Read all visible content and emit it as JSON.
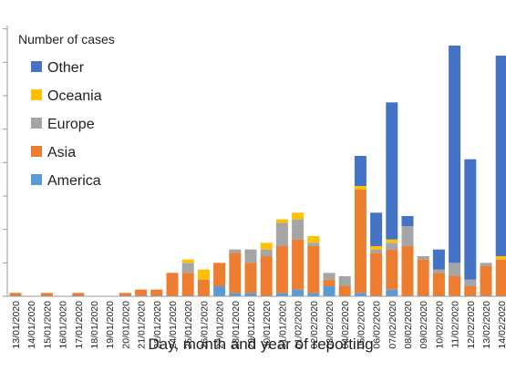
{
  "chart_data": {
    "type": "bar",
    "stacked": true,
    "ylabel": "Number of cases",
    "xlabel": "Day, month and year of reporting",
    "ylim": [
      0,
      81
    ],
    "y_tick_step": 10,
    "y_tick_labels_visible": false,
    "grid": false,
    "legend_position": "top-left",
    "legend_order": [
      "Other",
      "Oceania",
      "Europe",
      "Asia",
      "America"
    ],
    "categories": [
      "13/01/2020",
      "14/01/2020",
      "15/01/2020",
      "16/01/2020",
      "17/01/2020",
      "18/01/2020",
      "19/01/2020",
      "20/01/2020",
      "21/01/2020",
      "22/01/2020",
      "24/01/2020",
      "25/01/2020",
      "26/01/2020",
      "27/01/2020",
      "28/01/2020",
      "29/01/2020",
      "30/01/2020",
      "31/01/2020",
      "01/02/2020",
      "02/02/2020",
      "03/02/2020",
      "04/02/2020",
      "05/02/2020",
      "06/02/2020",
      "07/02/2020",
      "08/02/2020",
      "09/02/2020",
      "10/02/2020",
      "11/02/2020",
      "12/02/2020",
      "13/02/2020",
      "14/02/2020"
    ],
    "series": [
      {
        "name": "America",
        "color": "#5b9bd5",
        "values": [
          0,
          0,
          0,
          0,
          0,
          0,
          0,
          0,
          0,
          0,
          0,
          0,
          0,
          3,
          1,
          1,
          0,
          1,
          2,
          1,
          3,
          0,
          1,
          0,
          2,
          0,
          0,
          0,
          0,
          0,
          0,
          0
        ]
      },
      {
        "name": "Asia",
        "color": "#ed7d31",
        "values": [
          1,
          0,
          1,
          0,
          1,
          0,
          0,
          1,
          2,
          2,
          7,
          7,
          5,
          7,
          12,
          9,
          12,
          14,
          15,
          14,
          2,
          3,
          31,
          13,
          12,
          15,
          11,
          7,
          6,
          3,
          9,
          11
        ]
      },
      {
        "name": "Europe",
        "color": "#a5a5a5",
        "values": [
          0,
          0,
          0,
          0,
          0,
          0,
          0,
          0,
          0,
          0,
          0,
          3,
          0,
          0,
          1,
          4,
          2,
          7,
          6,
          1,
          2,
          3,
          0,
          1,
          2,
          6,
          1,
          1,
          4,
          2,
          1,
          0
        ]
      },
      {
        "name": "Oceania",
        "color": "#ffc000",
        "values": [
          0,
          0,
          0,
          0,
          0,
          0,
          0,
          0,
          0,
          0,
          0,
          1,
          3,
          0,
          0,
          0,
          2,
          1,
          2,
          2,
          0,
          0,
          1,
          1,
          1,
          0,
          0,
          0,
          0,
          0,
          0,
          1
        ]
      },
      {
        "name": "Other",
        "color": "#4472c4",
        "values": [
          0,
          0,
          0,
          0,
          0,
          0,
          0,
          0,
          0,
          0,
          0,
          0,
          0,
          0,
          0,
          0,
          0,
          0,
          0,
          0,
          0,
          0,
          9,
          10,
          41,
          3,
          0,
          6,
          65,
          36,
          0,
          60
        ]
      }
    ]
  }
}
